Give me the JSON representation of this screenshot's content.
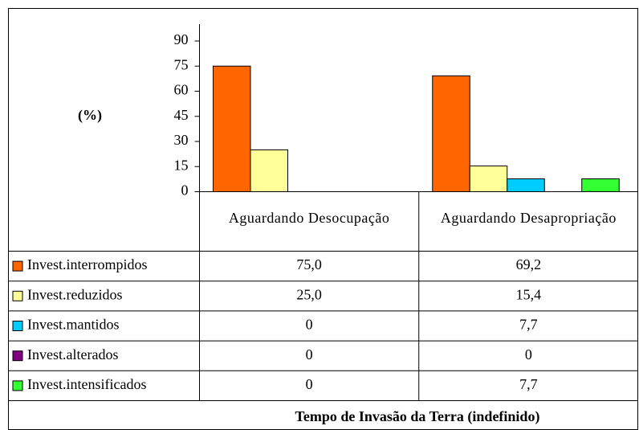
{
  "chart_data": {
    "type": "bar",
    "ylabel": "(%)",
    "xlabel": "Tempo de Invasão da Terra (indefinido)",
    "categories": [
      "Aguardando Desocupação",
      "Aguardando Desapropriação"
    ],
    "series": [
      {
        "name": "Invest.interrompidos",
        "color": "#ff6600",
        "values": [
          75,
          69.2
        ],
        "value_labels": [
          "75,0",
          "69,2"
        ]
      },
      {
        "name": "Invest.reduzidos",
        "color": "#ffff99",
        "values": [
          25,
          15.4
        ],
        "value_labels": [
          "25,0",
          "15,4"
        ]
      },
      {
        "name": "Invest.mantidos",
        "color": "#00ccff",
        "values": [
          0,
          7.7
        ],
        "value_labels": [
          "0",
          "7,7"
        ]
      },
      {
        "name": "Invest.alterados",
        "color": "#800080",
        "values": [
          0,
          0
        ]
      },
      {
        "name": "Invest.intensificados",
        "color": "#33ff33",
        "values": [
          0,
          7.7
        ],
        "value_labels": [
          "0",
          "7,7"
        ]
      }
    ],
    "ylim": [
      0,
      90
    ],
    "yticks": [
      0,
      15,
      30,
      45,
      60,
      75,
      90
    ]
  }
}
